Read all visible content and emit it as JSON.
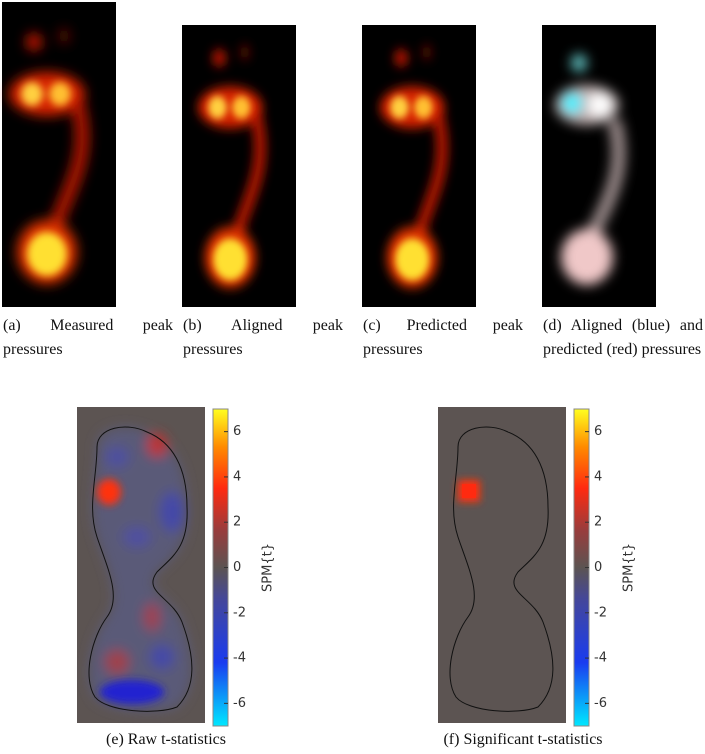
{
  "top_panels": [
    {
      "caption": "(a) Measured peak pressures"
    },
    {
      "caption": "(b) Aligned peak pressures"
    },
    {
      "caption": "(c) Predicted peak pressures"
    },
    {
      "caption": "(d) Aligned (blue) and predicted (red) pressures"
    }
  ],
  "bottom_panels": [
    {
      "caption": "(e) Raw t-statistics",
      "colorbar": {
        "label": "SPM{t}",
        "lim": [
          -7,
          7
        ],
        "ticks": [
          -6,
          -4,
          -2,
          0,
          2,
          4,
          6
        ]
      }
    },
    {
      "caption": "(f) Significant t-statistics",
      "colorbar": {
        "label": "SPM{t}",
        "lim": [
          -7,
          7
        ],
        "ticks": [
          -6,
          -4,
          -2,
          0,
          2,
          4,
          6
        ]
      }
    }
  ]
}
